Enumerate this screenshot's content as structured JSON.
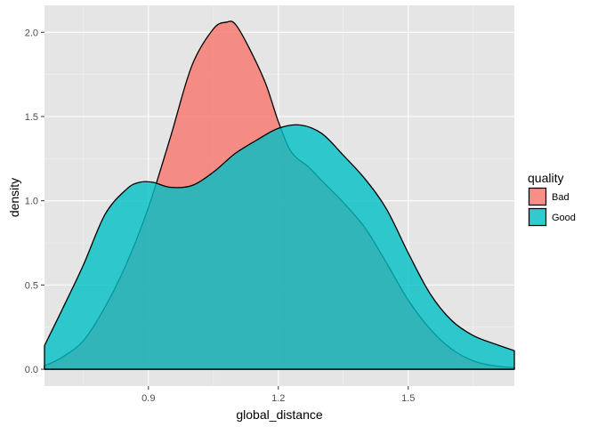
{
  "chart_data": {
    "type": "area",
    "subtype": "density",
    "title": "",
    "xlabel": "global_distance",
    "ylabel": "density",
    "xlim": [
      0.66,
      1.745
    ],
    "ylim": [
      -0.1,
      2.16
    ],
    "x_ticks": [
      0.9,
      1.2,
      1.5
    ],
    "x_tick_labels": [
      "0.9",
      "1.2",
      "1.5"
    ],
    "y_ticks": [
      0.0,
      0.5,
      1.0,
      1.5,
      2.0
    ],
    "y_tick_labels": [
      "0.0",
      "0.5",
      "1.0",
      "1.5",
      "2.0"
    ],
    "grid": true,
    "legend": {
      "title": "quality",
      "position": "right",
      "entries": [
        "Bad",
        "Good"
      ]
    },
    "series": [
      {
        "name": "Bad",
        "color": "#F8766D",
        "x": [
          0.66,
          0.7,
          0.75,
          0.8,
          0.85,
          0.9,
          0.95,
          1.0,
          1.05,
          1.08,
          1.1,
          1.13,
          1.17,
          1.2,
          1.23,
          1.27,
          1.3,
          1.35,
          1.4,
          1.45,
          1.5,
          1.55,
          1.6,
          1.65,
          1.7,
          1.745
        ],
        "y": [
          0.02,
          0.07,
          0.17,
          0.37,
          0.63,
          0.96,
          1.37,
          1.8,
          2.02,
          2.06,
          2.05,
          1.92,
          1.7,
          1.47,
          1.29,
          1.2,
          1.12,
          0.99,
          0.84,
          0.63,
          0.41,
          0.24,
          0.12,
          0.05,
          0.02,
          0.01
        ]
      },
      {
        "name": "Good",
        "color": "#00BFC4",
        "x": [
          0.66,
          0.7,
          0.75,
          0.8,
          0.85,
          0.88,
          0.91,
          0.95,
          1.0,
          1.05,
          1.1,
          1.15,
          1.2,
          1.25,
          1.3,
          1.35,
          1.4,
          1.45,
          1.5,
          1.55,
          1.6,
          1.65,
          1.7,
          1.745
        ],
        "y": [
          0.14,
          0.35,
          0.62,
          0.92,
          1.07,
          1.11,
          1.11,
          1.08,
          1.09,
          1.17,
          1.28,
          1.36,
          1.43,
          1.45,
          1.4,
          1.27,
          1.13,
          0.95,
          0.69,
          0.45,
          0.29,
          0.2,
          0.15,
          0.11
        ]
      }
    ]
  },
  "colors": {
    "panel_background": "#E5E5E5",
    "grid_major": "#FFFFFF",
    "grid_minor": "#F2F2F2",
    "outline": "#000000",
    "fill_opacity": 0.8
  }
}
